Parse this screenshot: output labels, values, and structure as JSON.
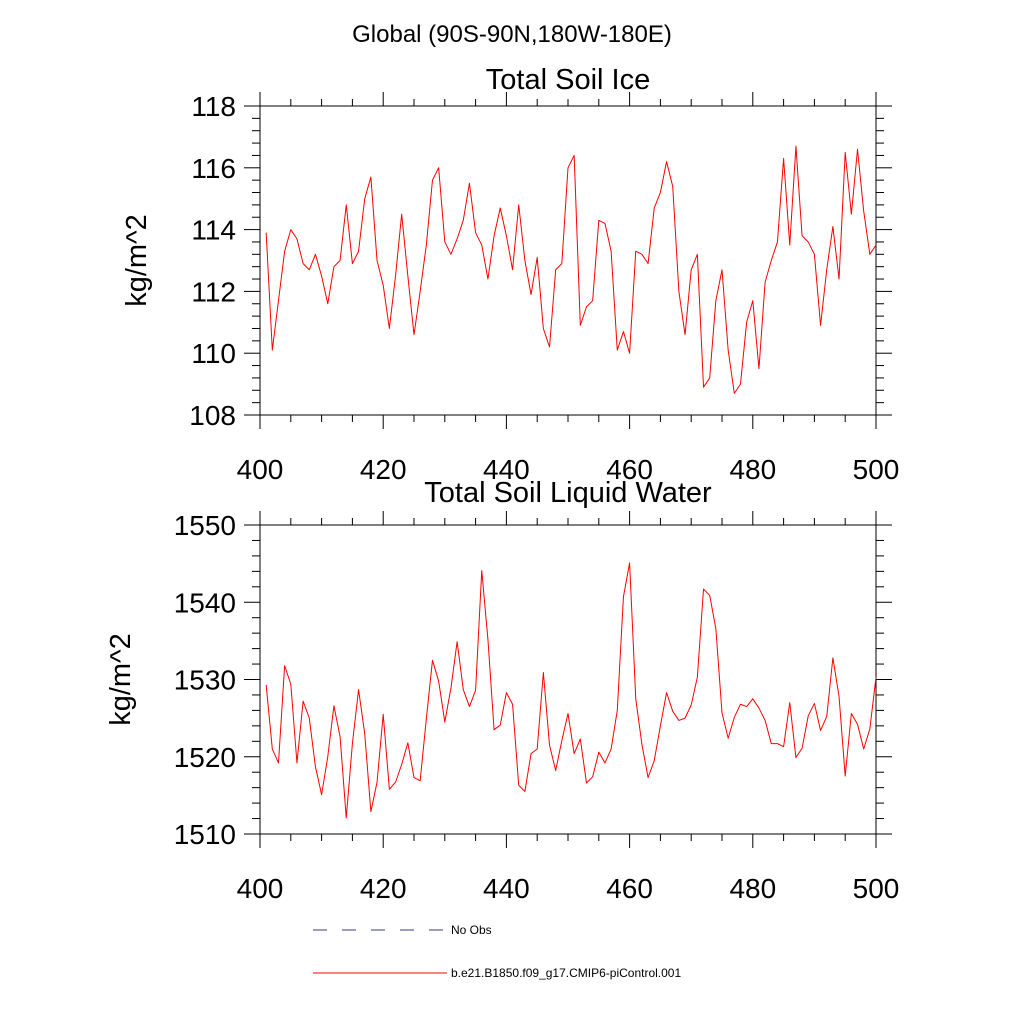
{
  "page": {
    "title": "Global (90S-90N,180W-180E)"
  },
  "colors": {
    "series": "#ff0000",
    "obs": "#3a3a7a",
    "axis": "#000000"
  },
  "legend": {
    "items": [
      {
        "label": "No Obs",
        "style": "dashed",
        "color": "#3a3a7a"
      },
      {
        "label": "b.e21.B1850.f09_g17.CMIP6-piControl.001",
        "style": "solid",
        "color": "#ff0000"
      }
    ]
  },
  "chart_data": [
    {
      "type": "line",
      "title": "Total Soil Ice",
      "xlabel": "",
      "ylabel": "kg/m^2",
      "xlim": [
        400,
        500
      ],
      "ylim": [
        108,
        118
      ],
      "xticks": [
        400,
        420,
        440,
        460,
        480,
        500
      ],
      "xtick_labels": [
        "400",
        "420",
        "440",
        "460",
        "480",
        "500"
      ],
      "yticks": [
        108,
        110,
        112,
        114,
        116,
        118
      ],
      "ytick_labels": [
        "108",
        "110",
        "112",
        "114",
        "116",
        "118"
      ],
      "grid": false,
      "series": [
        {
          "color": "#ff0000",
          "x_start": 401,
          "x_step": 1,
          "values": [
            113.9,
            110.1,
            111.7,
            113.3,
            114.0,
            113.7,
            112.9,
            112.7,
            113.2,
            112.5,
            111.6,
            112.8,
            113.0,
            114.8,
            112.9,
            113.3,
            115.0,
            115.7,
            113.0,
            112.2,
            110.8,
            112.5,
            114.5,
            112.5,
            110.6,
            112.0,
            113.5,
            115.6,
            116.0,
            113.6,
            113.2,
            113.7,
            114.3,
            115.5,
            113.9,
            113.5,
            112.4,
            113.8,
            114.7,
            113.8,
            112.7,
            114.8,
            113.0,
            111.9,
            113.1,
            110.8,
            110.2,
            112.7,
            112.9,
            116.0,
            116.4,
            110.9,
            111.5,
            111.7,
            114.3,
            114.2,
            113.3,
            110.1,
            110.7,
            110.0,
            113.3,
            113.2,
            112.9,
            114.7,
            115.2,
            116.2,
            115.4,
            112.0,
            110.6,
            112.7,
            113.2,
            108.9,
            109.2,
            111.7,
            112.7,
            110.1,
            108.7,
            109.0,
            111.0,
            111.7,
            109.5,
            112.3,
            113.0,
            113.6,
            116.3,
            113.5,
            116.7,
            113.8,
            113.6,
            113.2,
            110.9,
            112.7,
            114.1,
            112.4,
            116.5,
            114.5,
            116.6,
            114.6,
            113.2,
            113.5
          ]
        }
      ]
    },
    {
      "type": "line",
      "title": "Total Soil Liquid Water",
      "xlabel": "",
      "ylabel": "kg/m^2",
      "xlim": [
        400,
        500
      ],
      "ylim": [
        1510,
        1550
      ],
      "xticks": [
        400,
        420,
        440,
        460,
        480,
        500
      ],
      "xtick_labels": [
        "400",
        "420",
        "440",
        "460",
        "480",
        "500"
      ],
      "yticks": [
        1510,
        1520,
        1530,
        1540,
        1550
      ],
      "ytick_labels": [
        "1510",
        "1520",
        "1530",
        "1540",
        "1550"
      ],
      "grid": false,
      "series": [
        {
          "color": "#ff0000",
          "x_start": 401,
          "x_step": 1,
          "values": [
            1529.3,
            1521.0,
            1519.2,
            1531.8,
            1529.4,
            1519.2,
            1527.2,
            1525.0,
            1518.7,
            1515.1,
            1520.0,
            1526.6,
            1522.6,
            1512.1,
            1521.7,
            1528.7,
            1523.0,
            1512.9,
            1516.7,
            1525.5,
            1515.8,
            1516.7,
            1519.0,
            1521.8,
            1517.3,
            1516.9,
            1524.9,
            1532.5,
            1529.8,
            1524.5,
            1528.9,
            1534.9,
            1528.7,
            1526.5,
            1528.6,
            1544.1,
            1535.2,
            1523.5,
            1524.1,
            1528.3,
            1526.8,
            1516.3,
            1515.5,
            1520.4,
            1521.0,
            1530.9,
            1521.5,
            1518.2,
            1522.1,
            1525.6,
            1520.4,
            1522.3,
            1516.6,
            1517.4,
            1520.6,
            1519.2,
            1521.0,
            1526.0,
            1540.7,
            1545.1,
            1527.5,
            1521.6,
            1517.3,
            1519.5,
            1524.0,
            1528.3,
            1525.9,
            1524.7,
            1525.0,
            1526.7,
            1530.3,
            1541.7,
            1540.9,
            1536.6,
            1525.7,
            1522.4,
            1525.1,
            1526.8,
            1526.5,
            1527.5,
            1526.3,
            1524.7,
            1521.7,
            1521.7,
            1521.3,
            1527.0,
            1519.9,
            1521.1,
            1525.3,
            1526.9,
            1523.4,
            1525.2,
            1532.8,
            1527.8,
            1517.5,
            1525.6,
            1524.2,
            1521.0,
            1523.6,
            1530.3
          ]
        }
      ]
    }
  ]
}
